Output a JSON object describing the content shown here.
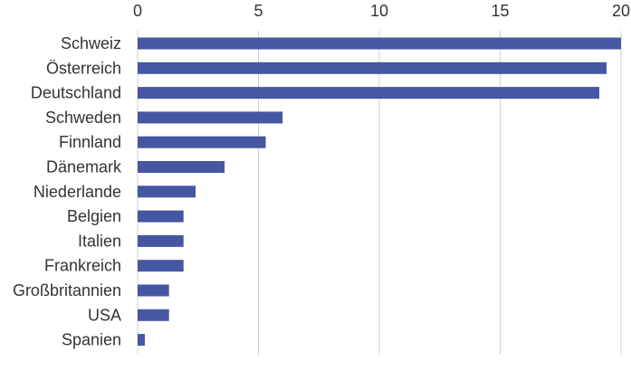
{
  "chart_data": {
    "type": "bar",
    "orientation": "horizontal",
    "categories": [
      "Schweiz",
      "Österreich",
      "Deutschland",
      "Schweden",
      "Finnland",
      "Dänemark",
      "Niederlande",
      "Belgien",
      "Italien",
      "Frankreich",
      "Großbritannien",
      "USA",
      "Spanien"
    ],
    "values": [
      20,
      19.4,
      19.1,
      6.0,
      5.3,
      3.6,
      2.4,
      1.9,
      1.9,
      1.9,
      1.3,
      1.3,
      0.3
    ],
    "title": "",
    "xlabel": "",
    "ylabel": "",
    "xlim": [
      0,
      20
    ],
    "x_ticks": [
      "0",
      "5",
      "10",
      "15",
      "20"
    ],
    "x_axis_position": "top",
    "grid": true,
    "bar_color": "#4557A2",
    "legend": "none"
  }
}
